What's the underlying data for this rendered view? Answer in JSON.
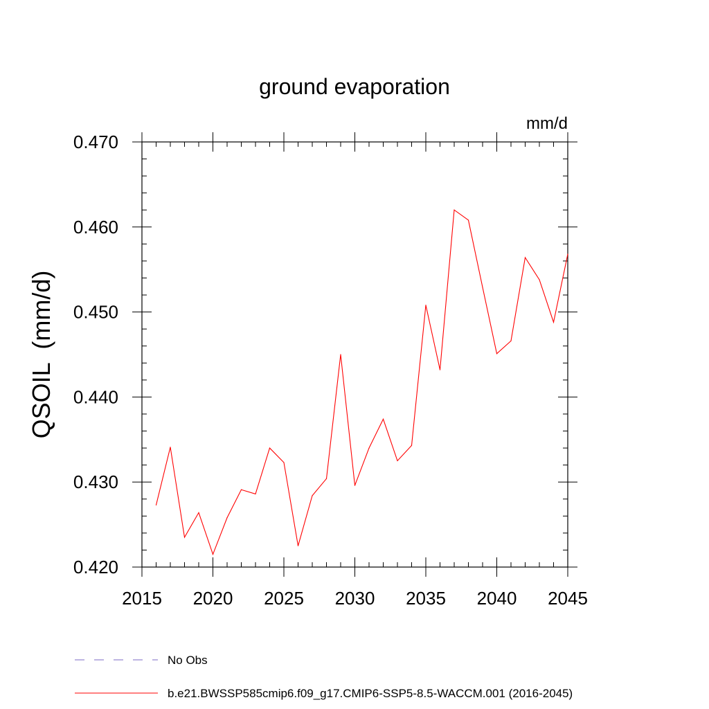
{
  "chart_data": {
    "type": "line",
    "title": "ground evaporation",
    "units_label": "mm/d",
    "ylabel": "QSOIL  (mm/d)",
    "xlabel": "",
    "xlim": [
      2015,
      2045
    ],
    "ylim": [
      0.42,
      0.47
    ],
    "x_ticks": [
      "2015",
      "2020",
      "2025",
      "2030",
      "2035",
      "2040",
      "2045"
    ],
    "y_ticks": [
      "0.420",
      "0.430",
      "0.440",
      "0.450",
      "0.460",
      "0.470"
    ],
    "grid": false,
    "legend_position": "bottom",
    "series": [
      {
        "name": "b.e21.BWSSP585cmip6.f09_g17.CMIP6-SSP5-8.5-WACCM.001 (2016-2045)",
        "color": "#ff0000",
        "style": "solid",
        "x": [
          2016,
          2017,
          2018,
          2019,
          2020,
          2021,
          2022,
          2023,
          2024,
          2025,
          2026,
          2027,
          2028,
          2029,
          2030,
          2031,
          2032,
          2033,
          2034,
          2035,
          2036,
          2037,
          2038,
          2039,
          2040,
          2041,
          2042,
          2043,
          2044,
          2045
        ],
        "values": [
          0.4273,
          0.4341,
          0.4235,
          0.4264,
          0.4215,
          0.4258,
          0.4291,
          0.4286,
          0.434,
          0.4323,
          0.4225,
          0.4284,
          0.4304,
          0.445,
          0.4296,
          0.434,
          0.4374,
          0.4325,
          0.4343,
          0.4508,
          0.4432,
          0.462,
          0.4608,
          0.4529,
          0.4451,
          0.4466,
          0.4564,
          0.4538,
          0.4488,
          0.4568
        ]
      }
    ],
    "legend": [
      {
        "label": "No Obs",
        "color": "#7b68c4",
        "style": "dashed"
      },
      {
        "label": "b.e21.BWSSP585cmip6.f09_g17.CMIP6-SSP5-8.5-WACCM.001 (2016-2045)",
        "color": "#ff0000",
        "style": "solid"
      }
    ]
  }
}
